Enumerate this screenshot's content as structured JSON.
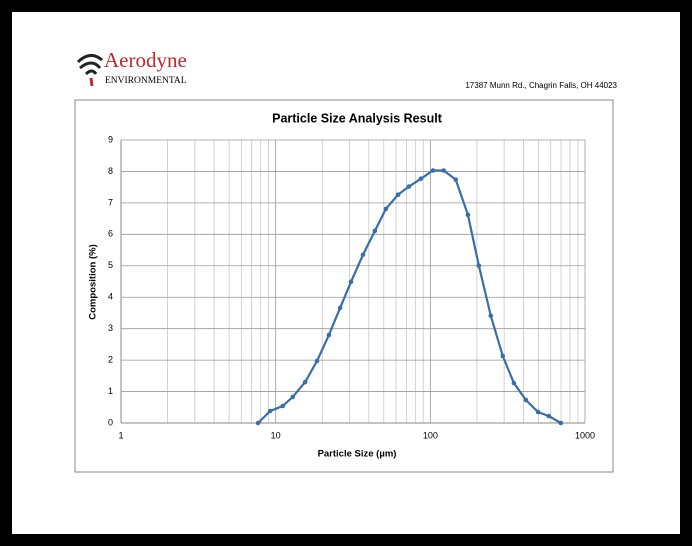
{
  "header": {
    "brand": "Aerodyne",
    "subbrand": "ENVIRONMENTAL",
    "address": "17387 Munn Rd., Chagrin Falls, OH 44023"
  },
  "chart_data": {
    "type": "line",
    "title": "Particle Size Analysis Result",
    "x_label": "Particle Size (µm)",
    "y_label": "Composition (%)",
    "x": [
      7.7,
      9.2,
      11.1,
      12.9,
      15.5,
      18.5,
      22.1,
      26.1,
      30.7,
      36.7,
      43.8,
      51.6,
      61.8,
      72.7,
      87,
      104,
      122,
      146,
      175,
      206,
      246,
      294,
      347,
      415,
      497,
      584,
      698
    ],
    "values": [
      0,
      0.38,
      0.54,
      0.83,
      1.3,
      1.97,
      2.8,
      3.66,
      4.49,
      5.35,
      6.11,
      6.81,
      7.26,
      7.52,
      7.77,
      8.03,
      8.03,
      7.74,
      6.62,
      5.0,
      3.41,
      2.13,
      1.27,
      0.73,
      0.35,
      0.22,
      0
    ],
    "color": "#3a6ea8",
    "xlim": [
      1,
      1000
    ],
    "xticks": [
      1,
      10,
      100,
      1000
    ],
    "xscale": "log",
    "ylim": [
      0,
      9
    ],
    "yticks": [
      0,
      1,
      2,
      3,
      4,
      5,
      6,
      7,
      8,
      9
    ],
    "grid": true
  }
}
